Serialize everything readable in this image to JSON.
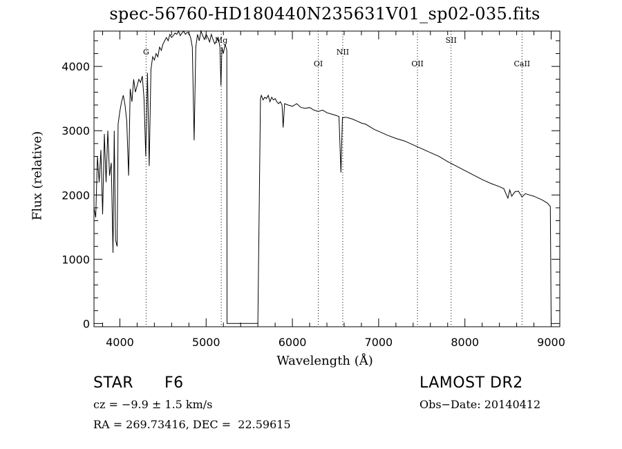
{
  "chart_data": {
    "type": "line",
    "title": "spec-56760-HD180440N235631V01_sp02-035.fits",
    "xlabel": "Wavelength (Å)",
    "ylabel": "Flux (relative)",
    "xlim": [
      3700,
      9100
    ],
    "ylim": [
      -50,
      4550
    ],
    "xticks": [
      4000,
      5000,
      6000,
      7000,
      8000,
      9000
    ],
    "yticks": [
      0,
      1000,
      2000,
      3000,
      4000
    ],
    "grid": false,
    "series": [
      {
        "x": [
          3700,
          3720,
          3740,
          3760,
          3780,
          3800,
          3820,
          3840,
          3860,
          3880,
          3900,
          3920,
          3935,
          3950,
          3968,
          3980,
          4000,
          4020,
          4040,
          4060,
          4080,
          4101,
          4120,
          4140,
          4160,
          4180,
          4200,
          4220,
          4240,
          4260,
          4280,
          4300,
          4320,
          4340,
          4360,
          4380,
          4400,
          4420,
          4440,
          4460,
          4480,
          4500,
          4520,
          4540,
          4560,
          4580,
          4600,
          4620,
          4640,
          4660,
          4680,
          4700,
          4720,
          4740,
          4760,
          4780,
          4800,
          4820,
          4840,
          4861,
          4880,
          4900,
          4920,
          4940,
          4960,
          4980,
          5000,
          5020,
          5040,
          5060,
          5080,
          5100,
          5120,
          5140,
          5160,
          5172,
          5183,
          5200,
          5220,
          5240,
          5242,
          5600,
          5620,
          5630,
          5640,
          5660,
          5680,
          5700,
          5720,
          5740,
          5760,
          5780,
          5800,
          5820,
          5840,
          5860,
          5880,
          5893,
          5910,
          5950,
          6000,
          6050,
          6100,
          6150,
          6200,
          6250,
          6300,
          6350,
          6400,
          6450,
          6500,
          6540,
          6563,
          6580,
          6620,
          6650,
          6700,
          6750,
          6800,
          6850,
          6900,
          6950,
          7000,
          7100,
          7200,
          7300,
          7400,
          7500,
          7600,
          7700,
          7800,
          7900,
          8000,
          8100,
          8200,
          8300,
          8400,
          8450,
          8498,
          8520,
          8542,
          8580,
          8620,
          8662,
          8700,
          8750,
          8800,
          8850,
          8900,
          8960,
          8990,
          9000
        ],
        "values": [
          1800,
          1650,
          2600,
          2200,
          2700,
          1700,
          2950,
          2200,
          3000,
          2300,
          2500,
          1100,
          3000,
          1300,
          1200,
          3100,
          3300,
          3450,
          3550,
          3400,
          3150,
          2300,
          3650,
          3450,
          3800,
          3600,
          3700,
          3800,
          3750,
          3850,
          3500,
          2600,
          3900,
          2450,
          3950,
          4150,
          4100,
          4200,
          4150,
          4300,
          4250,
          4350,
          4400,
          4450,
          4400,
          4500,
          4450,
          4480,
          4520,
          4500,
          4550,
          4480,
          4520,
          4550,
          4500,
          4530,
          4520,
          4450,
          4300,
          2850,
          4300,
          4500,
          4400,
          4550,
          4480,
          4420,
          4500,
          4450,
          4380,
          4500,
          4420,
          4350,
          4400,
          4450,
          4300,
          3700,
          4300,
          4200,
          4350,
          4250,
          0,
          0,
          2300,
          3500,
          3550,
          3480,
          3520,
          3500,
          3550,
          3450,
          3520,
          3480,
          3500,
          3450,
          3420,
          3450,
          3400,
          3050,
          3420,
          3400,
          3380,
          3420,
          3360,
          3350,
          3360,
          3320,
          3300,
          3320,
          3280,
          3260,
          3240,
          3220,
          2350,
          3200,
          3210,
          3200,
          3180,
          3150,
          3120,
          3100,
          3060,
          3020,
          2990,
          2930,
          2880,
          2840,
          2780,
          2720,
          2660,
          2600,
          2520,
          2450,
          2380,
          2310,
          2240,
          2180,
          2130,
          2100,
          1950,
          2080,
          1980,
          2050,
          2060,
          1970,
          2020,
          2000,
          1980,
          1950,
          1920,
          1870,
          1820,
          0
        ]
      }
    ],
    "annotations": [
      {
        "label": "G",
        "x": 4304
      },
      {
        "label": "Mg",
        "x": 5175
      },
      {
        "label": "OI",
        "x": 6300
      },
      {
        "label": "NII",
        "x": 6584
      },
      {
        "label": "OII",
        "x": 7450
      },
      {
        "label": "SII",
        "x": 7840
      },
      {
        "label": "CaII",
        "x": 8662
      }
    ]
  },
  "info": {
    "object_type": "STAR",
    "subclass": "F6",
    "cz": "cz = −9.9 ± 1.5 km/s",
    "coords": "RA = 269.73416, DEC =  22.59615",
    "survey": "LAMOST DR2",
    "obs_date": "Obs−Date: 20140412"
  }
}
